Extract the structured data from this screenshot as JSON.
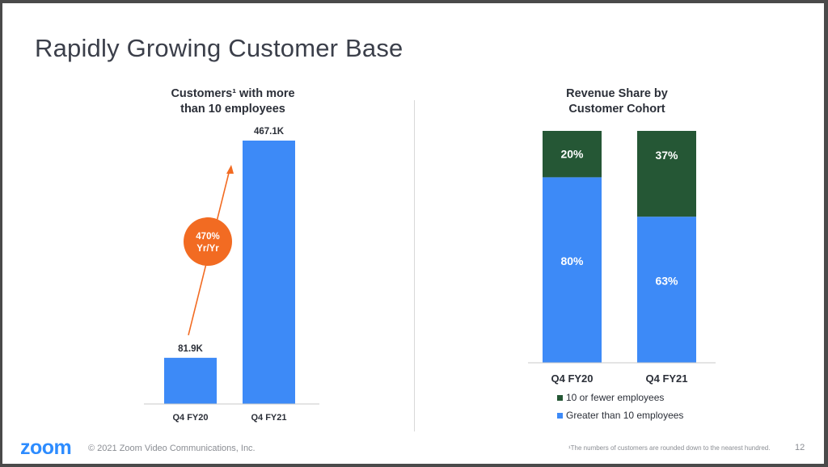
{
  "slide": {
    "title": "Rapidly Growing Customer Base",
    "footer_logo": "zoom",
    "copyright": "© 2021 Zoom Video Communications, Inc.",
    "footnote": "¹The numbers of customers are rounded down to the nearest hundred.",
    "page_number": "12"
  },
  "colors": {
    "blue": "#3d8af7",
    "dark_green": "#255735",
    "orange": "#f26b22"
  },
  "chart_data": [
    {
      "type": "bar",
      "title_line1": "Customers¹ with more",
      "title_line2": "than 10 employees",
      "categories": [
        "Q4 FY20",
        "Q4 FY21"
      ],
      "values": [
        81.9,
        467.1
      ],
      "value_labels": [
        "81.9K",
        "467.1K"
      ],
      "unit": "K",
      "ylim": [
        0,
        467.1
      ],
      "annotation": {
        "line1": "470%",
        "line2": "Yr/Yr"
      }
    },
    {
      "type": "bar",
      "stacked": true,
      "percent": true,
      "title_line1": "Revenue Share by",
      "title_line2": "Customer Cohort",
      "categories": [
        "Q4 FY20",
        "Q4 FY21"
      ],
      "series": [
        {
          "name": "Greater than 10 employees",
          "values": [
            80,
            63
          ],
          "labels": [
            "80%",
            "63%"
          ],
          "color": "#3d8af7"
        },
        {
          "name": "10 or fewer employees",
          "values": [
            20,
            37
          ],
          "labels": [
            "20%",
            "37%"
          ],
          "color": "#255735"
        }
      ],
      "ylim": [
        0,
        100
      ],
      "legend_position": "bottom"
    }
  ]
}
